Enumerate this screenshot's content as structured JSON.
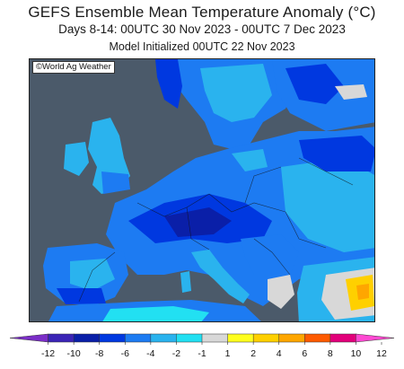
{
  "header": {
    "title": "GEFS Ensemble Mean Temperature Anomaly (°C)",
    "subtitle": "Days 8-14: 00UTC 30 Nov 2023 - 00UTC 7 Dec 2023",
    "init": "Model Initialized 00UTC 22 Nov 2023"
  },
  "map": {
    "credit": "©World Ag Weather",
    "ocean_color": "#4b5a6a",
    "region": "Europe"
  },
  "legend": {
    "ticks": [
      "-12",
      "-10",
      "-8",
      "-6",
      "-4",
      "-2",
      "-1",
      "1",
      "2",
      "4",
      "6",
      "8",
      "10",
      "12"
    ],
    "bins": [
      {
        "color": "#7b2ec7"
      },
      {
        "color": "#3b24b6"
      },
      {
        "color": "#0a1fa8"
      },
      {
        "color": "#0038e0"
      },
      {
        "color": "#1d7bf2"
      },
      {
        "color": "#2ab3ee"
      },
      {
        "color": "#22e0f2"
      },
      {
        "color": "#d8d8d8"
      },
      {
        "color": "#ffff1e"
      },
      {
        "color": "#ffd000"
      },
      {
        "color": "#ffa600"
      },
      {
        "color": "#ff5a00"
      },
      {
        "color": "#e2007a"
      },
      {
        "color": "#ff49d2"
      }
    ]
  }
}
